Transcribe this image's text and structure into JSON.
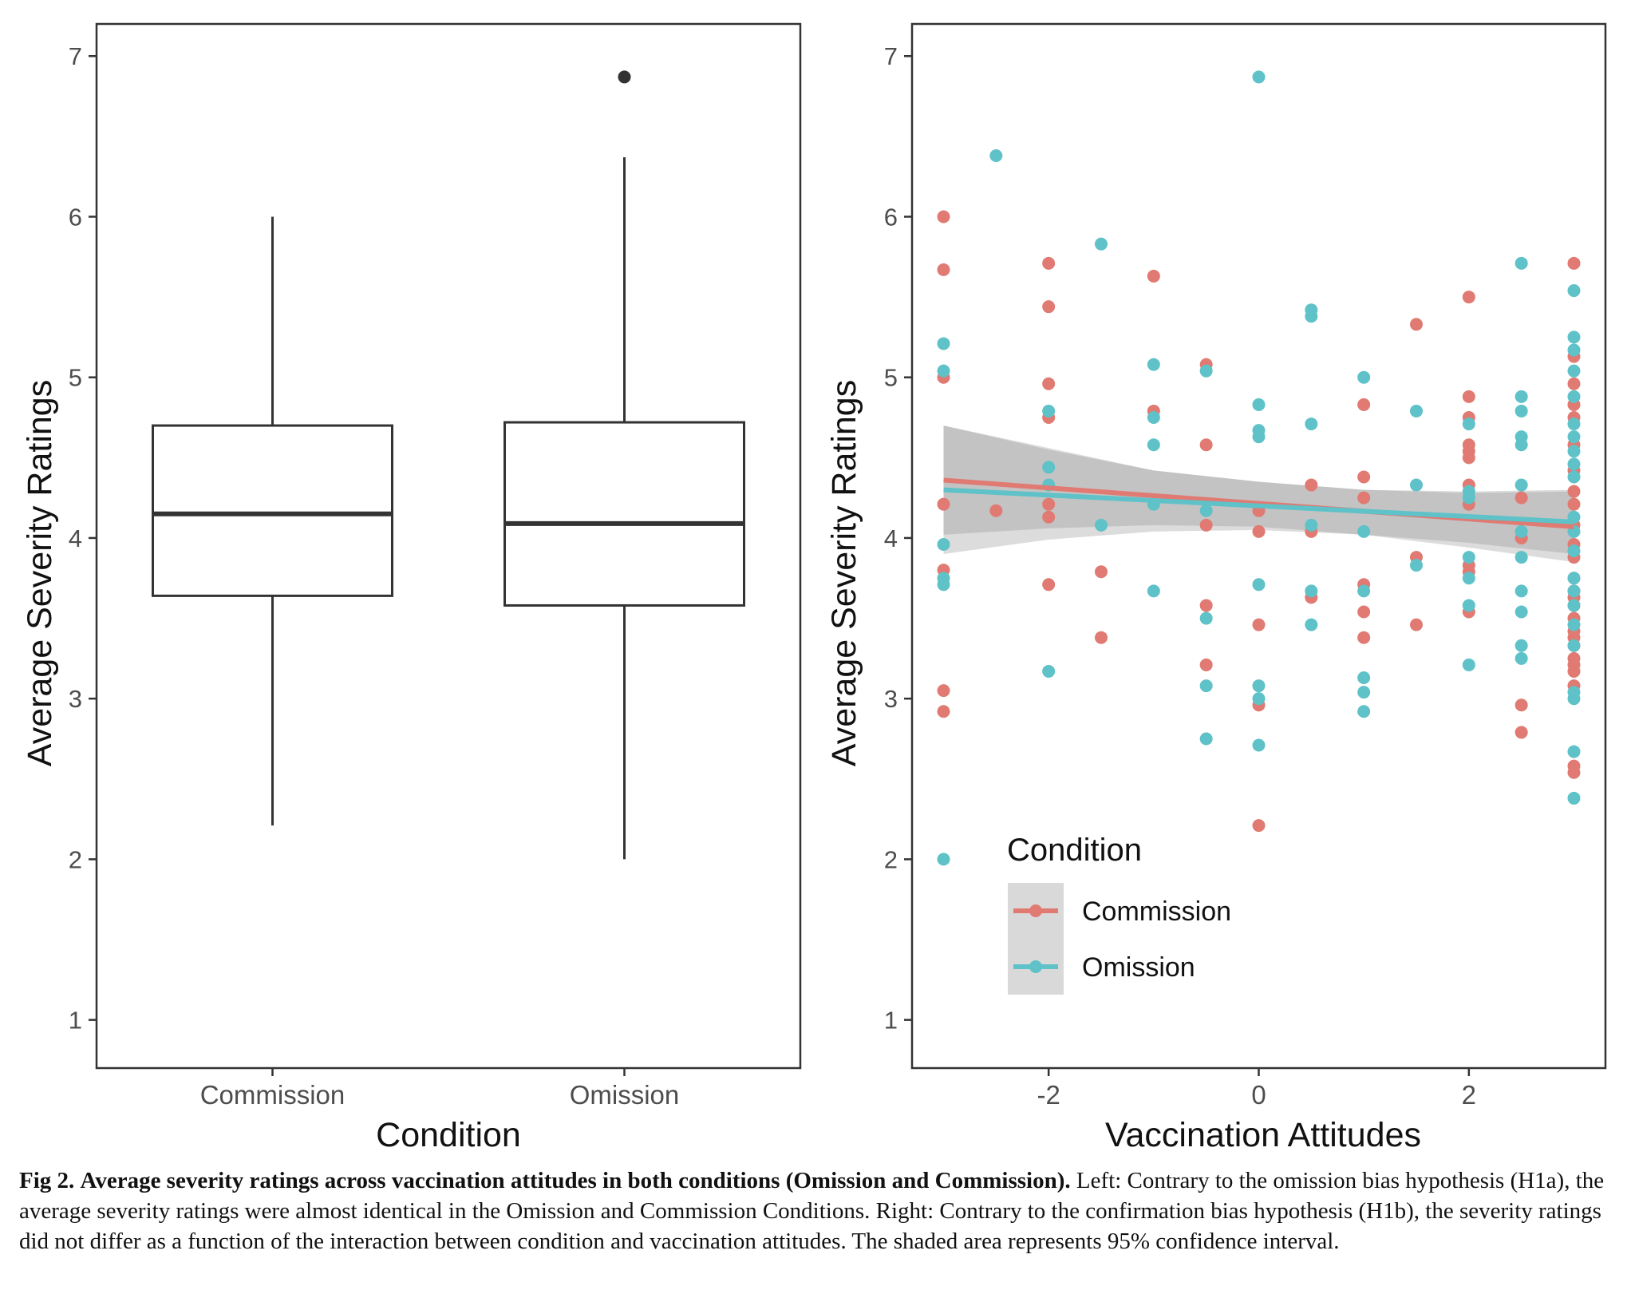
{
  "chart_data": [
    {
      "type": "box",
      "ylabel": "Average Severity Ratings",
      "xlabel": "Condition",
      "ylim": [
        0.7,
        7.2
      ],
      "yticks": [
        "1",
        "2",
        "3",
        "4",
        "5",
        "6",
        "7"
      ],
      "categories": [
        "Commission",
        "Omission"
      ],
      "boxes": [
        {
          "name": "Commission",
          "whisker_low": 2.21,
          "q1": 3.64,
          "median": 4.15,
          "q3": 4.7,
          "whisker_high": 6.0,
          "outliers": []
        },
        {
          "name": "Omission",
          "whisker_low": 2.0,
          "q1": 3.58,
          "median": 4.09,
          "q3": 4.72,
          "whisker_high": 6.37,
          "outliers": [
            6.87
          ]
        }
      ],
      "grid": false
    },
    {
      "type": "scatter",
      "ylabel": "Average Severity Ratings",
      "xlabel": "Vaccination Attitudes",
      "xlim": [
        -3.3,
        3.3
      ],
      "ylim": [
        0.7,
        7.2
      ],
      "xticks": [
        "-2",
        "0",
        "2"
      ],
      "yticks": [
        "1",
        "2",
        "3",
        "4",
        "5",
        "6",
        "7"
      ],
      "legend": {
        "title": "Condition",
        "position": "bottom-left",
        "entries": [
          "Commission",
          "Omission"
        ]
      },
      "grid": false,
      "series": [
        {
          "name": "Commission",
          "color": "#E07A72",
          "points": [
            [
              -3,
              6.0
            ],
            [
              -3,
              5.67
            ],
            [
              -3,
              5.0
            ],
            [
              -3,
              4.21
            ],
            [
              -3,
              3.8
            ],
            [
              -3,
              3.05
            ],
            [
              -3,
              2.92
            ],
            [
              -2.5,
              4.17
            ],
            [
              -2,
              5.71
            ],
            [
              -2,
              5.44
            ],
            [
              -2,
              4.96
            ],
            [
              -2,
              4.75
            ],
            [
              -2,
              4.21
            ],
            [
              -2,
              4.13
            ],
            [
              -2,
              3.71
            ],
            [
              -1.5,
              3.79
            ],
            [
              -1.5,
              3.38
            ],
            [
              -1,
              5.63
            ],
            [
              -1,
              4.79
            ],
            [
              -0.5,
              5.08
            ],
            [
              -0.5,
              4.58
            ],
            [
              -0.5,
              4.08
            ],
            [
              -0.5,
              3.58
            ],
            [
              -0.5,
              3.21
            ],
            [
              0,
              4.17
            ],
            [
              0,
              4.04
            ],
            [
              0,
              3.46
            ],
            [
              0,
              2.96
            ],
            [
              0,
              2.21
            ],
            [
              0.5,
              4.33
            ],
            [
              0.5,
              4.04
            ],
            [
              0.5,
              3.63
            ],
            [
              1,
              4.83
            ],
            [
              1,
              4.38
            ],
            [
              1,
              4.25
            ],
            [
              1,
              3.71
            ],
            [
              1,
              3.54
            ],
            [
              1,
              3.38
            ],
            [
              1.5,
              5.33
            ],
            [
              1.5,
              3.88
            ],
            [
              1.5,
              3.46
            ],
            [
              2,
              5.5
            ],
            [
              2,
              4.88
            ],
            [
              2,
              4.75
            ],
            [
              2,
              4.58
            ],
            [
              2,
              4.54
            ],
            [
              2,
              4.5
            ],
            [
              2,
              4.33
            ],
            [
              2,
              4.21
            ],
            [
              2,
              3.83
            ],
            [
              2,
              3.79
            ],
            [
              2,
              3.54
            ],
            [
              2.5,
              4.25
            ],
            [
              2.5,
              4.0
            ],
            [
              2.5,
              2.96
            ],
            [
              2.5,
              2.79
            ],
            [
              3,
              5.71
            ],
            [
              3,
              5.13
            ],
            [
              3,
              4.96
            ],
            [
              3,
              4.83
            ],
            [
              3,
              4.75
            ],
            [
              3,
              4.58
            ],
            [
              3,
              4.42
            ],
            [
              3,
              4.29
            ],
            [
              3,
              4.21
            ],
            [
              3,
              4.08
            ],
            [
              3,
              3.96
            ],
            [
              3,
              3.88
            ],
            [
              3,
              3.75
            ],
            [
              3,
              3.67
            ],
            [
              3,
              3.63
            ],
            [
              3,
              3.58
            ],
            [
              3,
              3.5
            ],
            [
              3,
              3.42
            ],
            [
              3,
              3.38
            ],
            [
              3,
              3.33
            ],
            [
              3,
              3.25
            ],
            [
              3,
              3.21
            ],
            [
              3,
              3.17
            ],
            [
              3,
              3.08
            ],
            [
              3,
              2.58
            ],
            [
              3,
              2.54
            ]
          ]
        },
        {
          "name": "Omission",
          "color": "#5EC2C8",
          "points": [
            [
              -3,
              5.21
            ],
            [
              -3,
              5.04
            ],
            [
              -3,
              3.96
            ],
            [
              -3,
              3.75
            ],
            [
              -3,
              3.71
            ],
            [
              -3,
              2.0
            ],
            [
              -2.5,
              6.38
            ],
            [
              -2,
              4.79
            ],
            [
              -2,
              4.44
            ],
            [
              -2,
              4.33
            ],
            [
              -2,
              3.17
            ],
            [
              -1.5,
              5.83
            ],
            [
              -1.5,
              4.08
            ],
            [
              -1,
              5.08
            ],
            [
              -1,
              4.75
            ],
            [
              -1,
              4.58
            ],
            [
              -1,
              4.21
            ],
            [
              -1,
              3.67
            ],
            [
              -0.5,
              5.04
            ],
            [
              -0.5,
              4.17
            ],
            [
              -0.5,
              3.5
            ],
            [
              -0.5,
              3.08
            ],
            [
              -0.5,
              2.75
            ],
            [
              0,
              6.87
            ],
            [
              0,
              4.83
            ],
            [
              0,
              4.67
            ],
            [
              0,
              4.63
            ],
            [
              0,
              3.71
            ],
            [
              0,
              3.08
            ],
            [
              0,
              3.0
            ],
            [
              0,
              2.71
            ],
            [
              0.5,
              5.42
            ],
            [
              0.5,
              5.38
            ],
            [
              0.5,
              4.71
            ],
            [
              0.5,
              4.08
            ],
            [
              0.5,
              3.67
            ],
            [
              0.5,
              3.46
            ],
            [
              1,
              5.0
            ],
            [
              1,
              4.04
            ],
            [
              1,
              3.67
            ],
            [
              1,
              3.13
            ],
            [
              1,
              3.04
            ],
            [
              1,
              2.92
            ],
            [
              1.5,
              4.79
            ],
            [
              1.5,
              4.33
            ],
            [
              1.5,
              3.83
            ],
            [
              2,
              4.71
            ],
            [
              2,
              4.29
            ],
            [
              2,
              4.25
            ],
            [
              2,
              3.88
            ],
            [
              2,
              3.75
            ],
            [
              2,
              3.58
            ],
            [
              2,
              3.21
            ],
            [
              2.5,
              5.71
            ],
            [
              2.5,
              4.88
            ],
            [
              2.5,
              4.79
            ],
            [
              2.5,
              4.63
            ],
            [
              2.5,
              4.58
            ],
            [
              2.5,
              4.33
            ],
            [
              2.5,
              4.04
            ],
            [
              2.5,
              3.88
            ],
            [
              2.5,
              3.67
            ],
            [
              2.5,
              3.54
            ],
            [
              2.5,
              3.33
            ],
            [
              2.5,
              3.25
            ],
            [
              3,
              5.54
            ],
            [
              3,
              5.25
            ],
            [
              3,
              5.17
            ],
            [
              3,
              5.04
            ],
            [
              3,
              4.88
            ],
            [
              3,
              4.71
            ],
            [
              3,
              4.63
            ],
            [
              3,
              4.54
            ],
            [
              3,
              4.46
            ],
            [
              3,
              4.38
            ],
            [
              3,
              4.13
            ],
            [
              3,
              4.04
            ],
            [
              3,
              3.92
            ],
            [
              3,
              3.75
            ],
            [
              3,
              3.67
            ],
            [
              3,
              3.58
            ],
            [
              3,
              3.46
            ],
            [
              3,
              3.33
            ],
            [
              3,
              3.04
            ],
            [
              3,
              3.0
            ],
            [
              3,
              2.67
            ],
            [
              3,
              2.38
            ]
          ]
        }
      ],
      "fits": [
        {
          "name": "Commission",
          "color": "#E07A72",
          "x": [
            -3,
            3
          ],
          "y": [
            4.36,
            4.07
          ]
        },
        {
          "name": "Omission",
          "color": "#5EC2C8",
          "x": [
            -3,
            3
          ],
          "y": [
            4.3,
            4.1
          ]
        }
      ],
      "confidence_bands": [
        {
          "name": "Commission",
          "x": [
            -3,
            -2,
            -1,
            0,
            1,
            2,
            3
          ],
          "lower": [
            4.02,
            4.06,
            4.08,
            4.07,
            4.02,
            3.94,
            3.85
          ],
          "upper": [
            4.7,
            4.56,
            4.42,
            4.35,
            4.3,
            4.28,
            4.29
          ]
        },
        {
          "name": "Omission",
          "x": [
            -3,
            -2,
            -1,
            0,
            1,
            2,
            3
          ],
          "lower": [
            3.9,
            3.99,
            4.04,
            4.05,
            4.02,
            3.97,
            3.9
          ],
          "upper": [
            4.7,
            4.55,
            4.42,
            4.35,
            4.3,
            4.29,
            4.3
          ]
        }
      ]
    }
  ],
  "caption": {
    "label": "Fig 2.",
    "title": "Average severity ratings across vaccination attitudes in both conditions (Omission and Commission).",
    "text": "Left: Contrary to the omission bias hypothesis (H1a), the average severity ratings were almost identical in the Omission and Commission Conditions. Right: Contrary to the confirmation bias hypothesis (H1b), the severity ratings did not differ as a function of the interaction between condition and vaccination attitudes. The shaded area represents 95% confidence interval."
  }
}
